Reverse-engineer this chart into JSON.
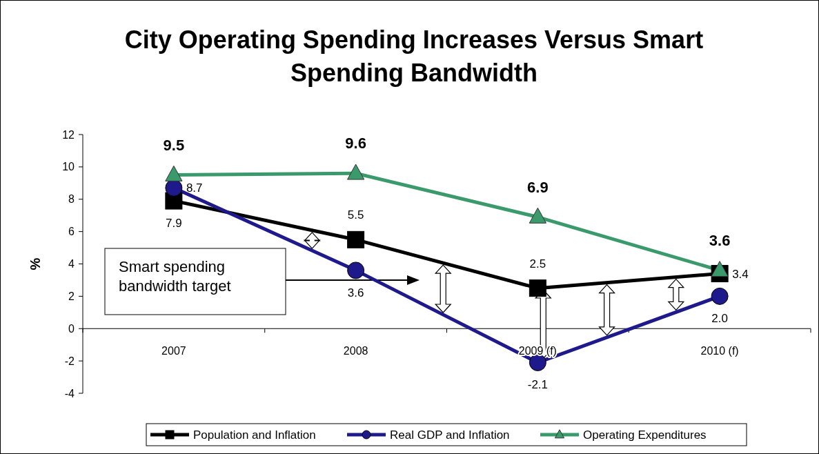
{
  "chart_data": {
    "type": "line",
    "title": "City Operating Spending Increases Versus Smart Spending Bandwidth",
    "ylabel": "%",
    "categories": [
      "2007",
      "2008",
      "2009 (f)",
      "2010 (f)"
    ],
    "series": [
      {
        "name": "Population and Inflation",
        "color": "#000000",
        "marker": "square",
        "values": [
          7.9,
          5.5,
          2.5,
          3.4
        ],
        "value_labels": [
          "7.9",
          "5.5",
          "2.5",
          "3.4"
        ]
      },
      {
        "name": "Real GDP and Inflation",
        "color": "#1f1a8c",
        "marker": "circle",
        "values": [
          8.7,
          3.6,
          -2.1,
          2.0
        ],
        "value_labels": [
          "8.7",
          "3.6",
          "-2.1",
          "2.0"
        ]
      },
      {
        "name": "Operating Expenditures",
        "color": "#3a9a6c",
        "marker": "triangle",
        "values": [
          9.5,
          9.6,
          6.9,
          3.6
        ],
        "value_labels": [
          "9.5",
          "9.6",
          "6.9",
          "3.6"
        ]
      }
    ],
    "ylim": [
      -4,
      12
    ],
    "yticks": [
      -4,
      -2,
      0,
      2,
      4,
      6,
      8,
      10,
      12
    ],
    "grid": false,
    "legend": "bottom",
    "annotations": [
      "Smart spending bandwidth target"
    ]
  }
}
